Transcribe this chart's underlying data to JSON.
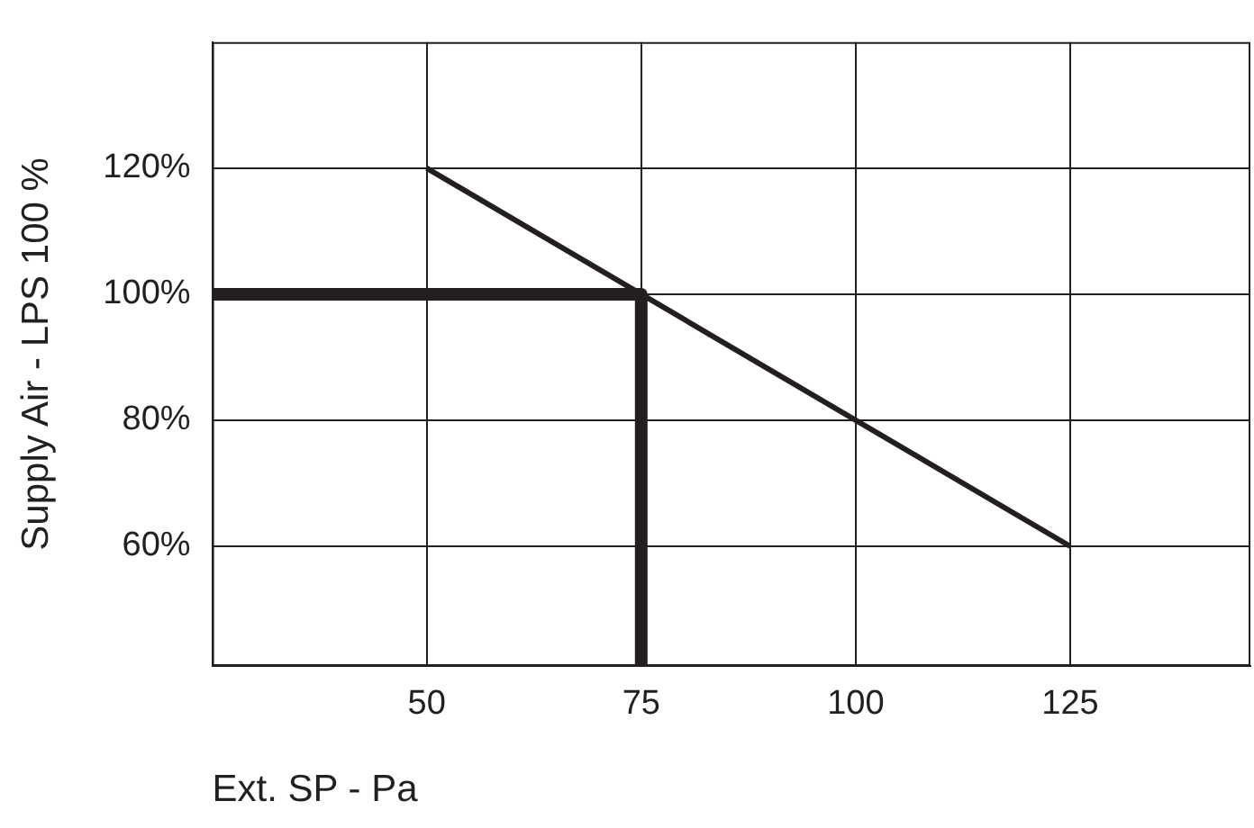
{
  "chart_data": {
    "type": "line",
    "xlabel": "Ext. SP - Pa",
    "ylabel": "Supply Air - LPS 100 %",
    "xlim": [
      25,
      146
    ],
    "xticks": [
      50,
      75,
      100,
      125
    ],
    "ylim": [
      41,
      140
    ],
    "yticks": [
      {
        "value": 60,
        "label": "60%"
      },
      {
        "value": 80,
        "label": "80%"
      },
      {
        "value": 100,
        "label": "100%"
      },
      {
        "value": 120,
        "label": "120%"
      }
    ],
    "grid": true,
    "marker": "none",
    "line_style": "solid",
    "series": [
      {
        "color": "#231f20",
        "x": [
          50,
          125
        ],
        "values": [
          120,
          60
        ]
      },
      {
        "color": "#231f20",
        "x": [
          25,
          75,
          75
        ],
        "values": [
          100,
          100,
          41
        ]
      }
    ]
  }
}
